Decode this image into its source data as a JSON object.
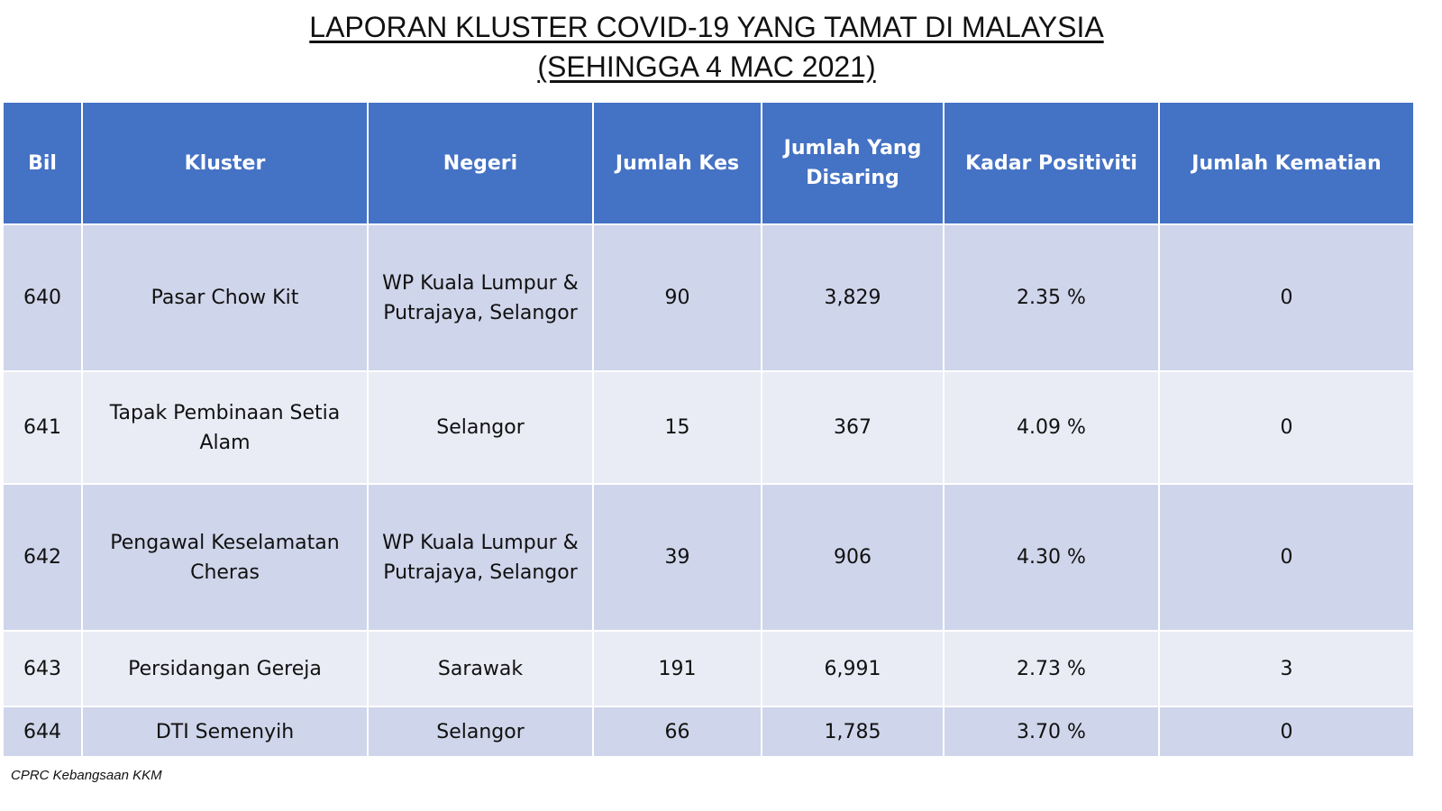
{
  "title": {
    "line1": "LAPORAN KLUSTER COVID-19 YANG TAMAT DI MALAYSIA",
    "line2": "(SEHINGGA 4 MAC 2021)"
  },
  "table": {
    "headers": [
      "Bil",
      "Kluster",
      "Negeri",
      "Jumlah Kes",
      "Jumlah Yang Disaring",
      "Kadar Positiviti",
      "Jumlah Kematian"
    ],
    "rows": [
      [
        "640",
        "Pasar Chow Kit",
        "WP Kuala Lumpur & Putrajaya, Selangor",
        "90",
        "3,829",
        "2.35 %",
        "0"
      ],
      [
        "641",
        "Tapak Pembinaan Setia Alam",
        "Selangor",
        "15",
        "367",
        "4.09 %",
        "0"
      ],
      [
        "642",
        "Pengawal Keselamatan Cheras",
        "WP Kuala Lumpur & Putrajaya, Selangor",
        "39",
        "906",
        "4.30 %",
        "0"
      ],
      [
        "643",
        "Persidangan Gereja",
        "Sarawak",
        "191",
        "6,991",
        "2.73 %",
        "3"
      ],
      [
        "644",
        "DTI Semenyih",
        "Selangor",
        "66",
        "1,785",
        "3.70 %",
        "0"
      ]
    ]
  },
  "footer": "CPRC Kebangsaan KKM",
  "colors": {
    "header_bg": "#4472c4",
    "row_odd_bg": "#cfd5ea",
    "row_even_bg": "#e9ebf5"
  }
}
